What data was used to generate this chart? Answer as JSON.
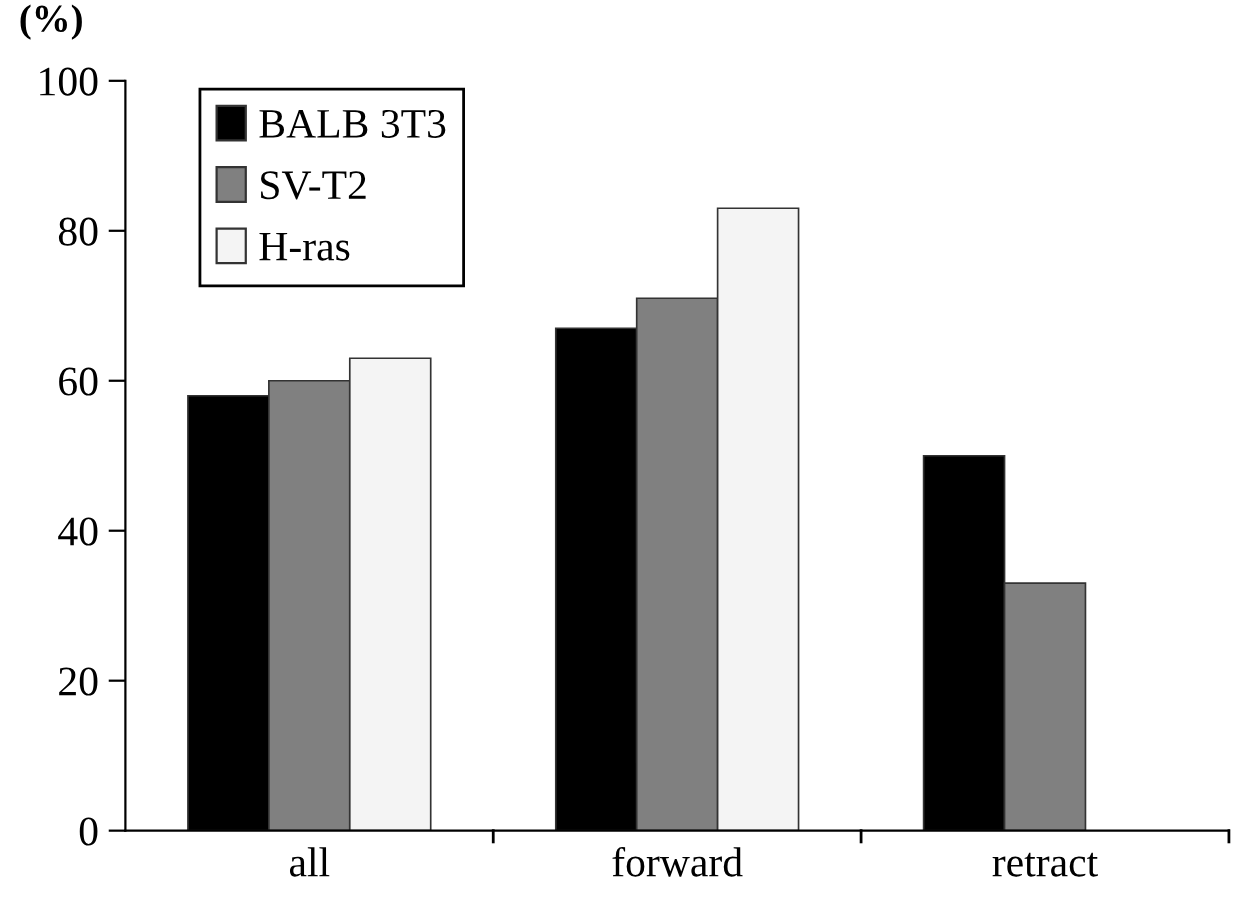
{
  "chart_data": {
    "type": "bar",
    "ylabel": "(%)",
    "categories": [
      "all",
      "forward",
      "retract"
    ],
    "series": [
      {
        "name": "BALB 3T3",
        "color": "#000000",
        "values": [
          58,
          67,
          50
        ]
      },
      {
        "name": "SV-T2",
        "color": "#808080",
        "values": [
          60,
          71,
          33
        ]
      },
      {
        "name": "H-ras",
        "color": "#f4f4f4",
        "values": [
          63,
          83,
          null
        ]
      }
    ],
    "ylim": [
      0,
      100
    ],
    "yticks": [
      0,
      20,
      40,
      60,
      80,
      100
    ],
    "grid": false,
    "legend": "top left"
  }
}
